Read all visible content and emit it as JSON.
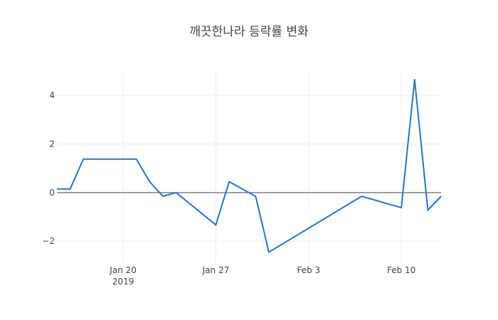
{
  "chart_data": {
    "type": "line",
    "title": "깨끗한나라 등락률 변화",
    "xlabel": "",
    "ylabel": "",
    "x_range": [
      "2019-01-15",
      "2019-02-13"
    ],
    "ylim": [
      -2.9,
      5.0
    ],
    "x_ticks": [
      {
        "date": "2019-01-20",
        "label": "Jan 20",
        "sublabel": "2019"
      },
      {
        "date": "2019-01-27",
        "label": "Jan 27",
        "sublabel": ""
      },
      {
        "date": "2019-02-03",
        "label": "Feb 3",
        "sublabel": ""
      },
      {
        "date": "2019-02-10",
        "label": "Feb 10",
        "sublabel": ""
      }
    ],
    "y_ticks": [
      {
        "value": 4,
        "label": "4"
      },
      {
        "value": 2,
        "label": "2"
      },
      {
        "value": 0,
        "label": "0"
      },
      {
        "value": -2,
        "label": "−2"
      }
    ],
    "grid": true,
    "zero_line": true,
    "series": [
      {
        "color": "#1f77d4",
        "points": [
          {
            "x": "2019-01-15",
            "y": 0.15
          },
          {
            "x": "2019-01-16",
            "y": 0.15
          },
          {
            "x": "2019-01-17",
            "y": 1.38
          },
          {
            "x": "2019-01-18",
            "y": 1.38
          },
          {
            "x": "2019-01-19",
            "y": 1.38
          },
          {
            "x": "2019-01-20",
            "y": 1.38
          },
          {
            "x": "2019-01-21",
            "y": 1.38
          },
          {
            "x": "2019-01-22",
            "y": 0.45
          },
          {
            "x": "2019-01-23",
            "y": -0.15
          },
          {
            "x": "2019-01-24",
            "y": 0.0
          },
          {
            "x": "2019-01-27",
            "y": -1.33
          },
          {
            "x": "2019-01-28",
            "y": 0.45
          },
          {
            "x": "2019-01-30",
            "y": -0.15
          },
          {
            "x": "2019-01-31",
            "y": -2.45
          },
          {
            "x": "2019-02-07",
            "y": -0.15
          },
          {
            "x": "2019-02-10",
            "y": -0.62
          },
          {
            "x": "2019-02-11",
            "y": 4.65
          },
          {
            "x": "2019-02-12",
            "y": -0.72
          },
          {
            "x": "2019-02-13",
            "y": -0.15
          }
        ]
      }
    ]
  }
}
